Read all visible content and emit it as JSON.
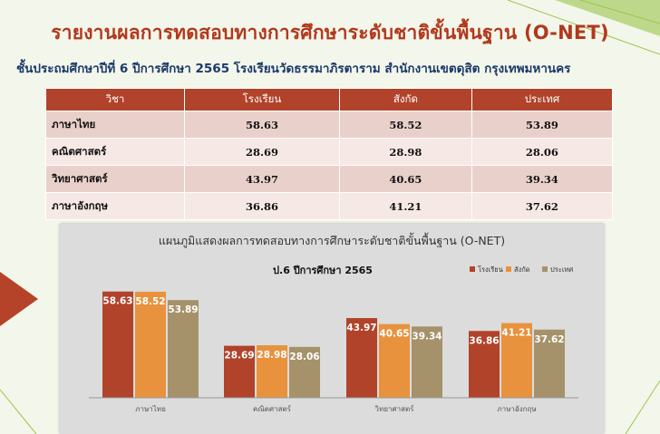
{
  "title": "รายงานผลการทดสอบทางการศึกษาระดับชาติขั้นพื้นฐาน (O-NET)",
  "subtitle": "ชั้นประถมศึกษาปีที่ 6 ปีการศึกษา 2565   โรงเรียนวัดธรรมาภิรตาราม สำนักงานเขตดุสิต กรุงเทพมหานคร",
  "table": {
    "headers": [
      "วิชา",
      "โรงเรียน",
      "สังกัด",
      "ประเทศ"
    ],
    "rows": [
      {
        "subject": "ภาษาไทย",
        "school": "58.63",
        "affiliation": "58.52",
        "country": "53.89"
      },
      {
        "subject": "คณิตศาสตร์",
        "school": "28.69",
        "affiliation": "28.98",
        "country": "28.06"
      },
      {
        "subject": "วิทยาศาสตร์",
        "school": "43.97",
        "affiliation": "40.65",
        "country": "39.34"
      },
      {
        "subject": "ภาษาอังกฤษ",
        "school": "36.86",
        "affiliation": "41.21",
        "country": "37.62"
      }
    ]
  },
  "chart_data": {
    "type": "bar",
    "title": "แผนภูมิแสดงผลการทดสอบทางการศึกษาระดับชาติขั้นพื้นฐาน (O-NET)",
    "subtitle": "ป.6 ปีการศึกษา 2565",
    "categories": [
      "ภาษาไทย",
      "คณิตศาสตร์",
      "วิทยาศาสตร์",
      "ภาษาอังกฤษ"
    ],
    "series": [
      {
        "name": "โรงเรียน",
        "color": "#b0432a",
        "values": [
          58.63,
          28.69,
          43.97,
          36.86
        ]
      },
      {
        "name": "สังกัด",
        "color": "#e8923e",
        "values": [
          58.52,
          28.98,
          40.65,
          41.21
        ]
      },
      {
        "name": "ประเทศ",
        "color": "#a6926a",
        "values": [
          53.89,
          28.06,
          39.34,
          37.62
        ]
      }
    ],
    "ylim": [
      0,
      70
    ],
    "grid": false,
    "legend": "top-right"
  }
}
